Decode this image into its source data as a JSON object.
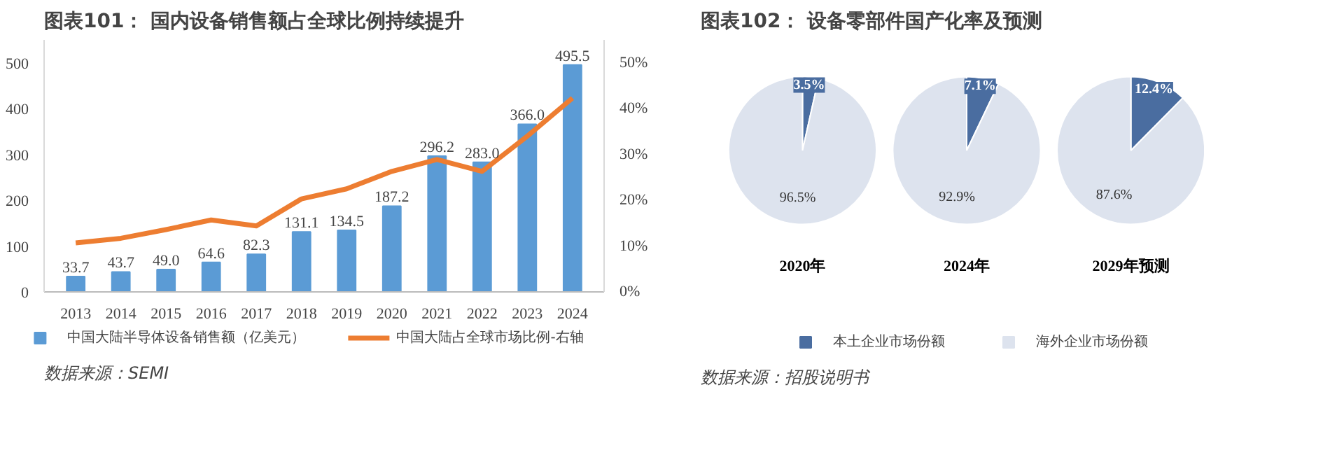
{
  "chart_data": [
    {
      "type": "bar",
      "title": "图表101：  国内设备销售额占全球比例持续提升",
      "categories": [
        "2013",
        "2014",
        "2015",
        "2016",
        "2017",
        "2018",
        "2019",
        "2020",
        "2021",
        "2022",
        "2023",
        "2024"
      ],
      "series": [
        {
          "name": "中国大陆半导体设备销售额（亿美元）",
          "color": "#5b9bd5",
          "values": [
            33.7,
            43.7,
            49.0,
            64.6,
            82.3,
            131.1,
            134.5,
            187.2,
            296.2,
            283.0,
            366.0,
            495.5
          ],
          "value_labels": [
            "33.7",
            "43.7",
            "49.0",
            "64.6",
            "82.3",
            "131.1",
            "134.5",
            "187.2",
            "296.2",
            "283.0",
            "366.0",
            "495.5"
          ]
        },
        {
          "name": "中国大陆占全球市场比例-右轴",
          "type": "line",
          "axis": "y2",
          "color": "#ed7d31",
          "values": [
            10.7,
            11.7,
            13.6,
            15.7,
            14.4,
            20.3,
            22.5,
            26.3,
            28.9,
            26.3,
            34.0,
            42.3
          ]
        }
      ],
      "ylim": [
        0,
        550
      ],
      "yticks": [
        0,
        100,
        200,
        300,
        400,
        500
      ],
      "y2lim": [
        0,
        55
      ],
      "y2ticks": [
        {
          "value": 0,
          "label": "0%"
        },
        {
          "value": 10,
          "label": "10%"
        },
        {
          "value": 20,
          "label": "20%"
        },
        {
          "value": 30,
          "label": "30%"
        },
        {
          "value": 40,
          "label": "40%"
        },
        {
          "value": 50,
          "label": "50%"
        }
      ],
      "grid": false,
      "legend": "bottom",
      "marker": "none",
      "line_style": "solid",
      "annotations": [
        "数据来源：SEMI"
      ]
    },
    {
      "type": "pie",
      "title": "图表102：  设备零部件国产化率及预测",
      "categories": [
        "本土企业市场份额",
        "海外企业市场份额"
      ],
      "colors": [
        "#4a6da0",
        "#dde3ee"
      ],
      "series": [
        {
          "name": "2020年",
          "values": [
            3.5,
            96.5
          ],
          "value_labels": [
            "3.5%",
            "96.5%"
          ]
        },
        {
          "name": "2024年",
          "values": [
            7.1,
            92.9
          ],
          "value_labels": [
            "7.1%",
            "92.9%"
          ]
        },
        {
          "name": "2029年预测",
          "values": [
            12.4,
            87.6
          ],
          "value_labels": [
            "12.4%",
            "87.6%"
          ]
        }
      ],
      "legend": "bottom",
      "annotations": [
        "数据来源：招股说明书"
      ]
    }
  ]
}
